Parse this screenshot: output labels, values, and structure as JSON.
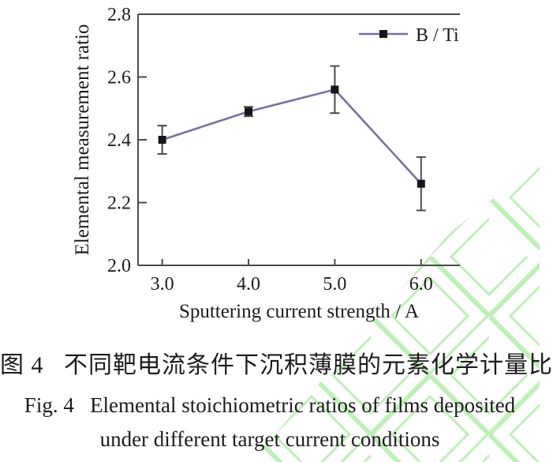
{
  "figure": {
    "caption_zh": "图 4   不同靶电流条件下沉积薄膜的元素化学计量比",
    "caption_en_line1": "Fig. 4   Elemental stoichiometric ratios of films deposited",
    "caption_en_line2": "under different target current conditions"
  },
  "chart_data": {
    "type": "line",
    "title": "",
    "xlabel": "Sputtering current strength / A",
    "ylabel": "Elemental measurement ratio",
    "series": [
      {
        "name": "B / Ti",
        "x": [
          3.0,
          4.0,
          5.0,
          6.0
        ],
        "values": [
          2.4,
          2.49,
          2.56,
          2.26
        ],
        "errors": [
          0.045,
          0.015,
          0.075,
          0.085
        ]
      }
    ],
    "xticks": [
      3.0,
      4.0,
      5.0,
      6.0
    ],
    "yticks": [
      2.0,
      2.2,
      2.4,
      2.6,
      2.8
    ],
    "xtick_labels": [
      "3.0",
      "4.0",
      "5.0",
      "6.0"
    ],
    "ytick_labels": [
      "2.0",
      "2.2",
      "2.4",
      "2.6",
      "2.8"
    ],
    "xlim": [
      2.72,
      6.45
    ],
    "ylim": [
      2.0,
      2.8
    ],
    "grid": false,
    "legend_position": "top-right",
    "marker": "square",
    "colors": {
      "line": "#7b6da5",
      "marker": "#161616",
      "error_bar": "#4a4a4a",
      "axis": "#4a4a4a",
      "text": "#1c1c1c",
      "watermark_green": "#bdf0b6"
    }
  }
}
